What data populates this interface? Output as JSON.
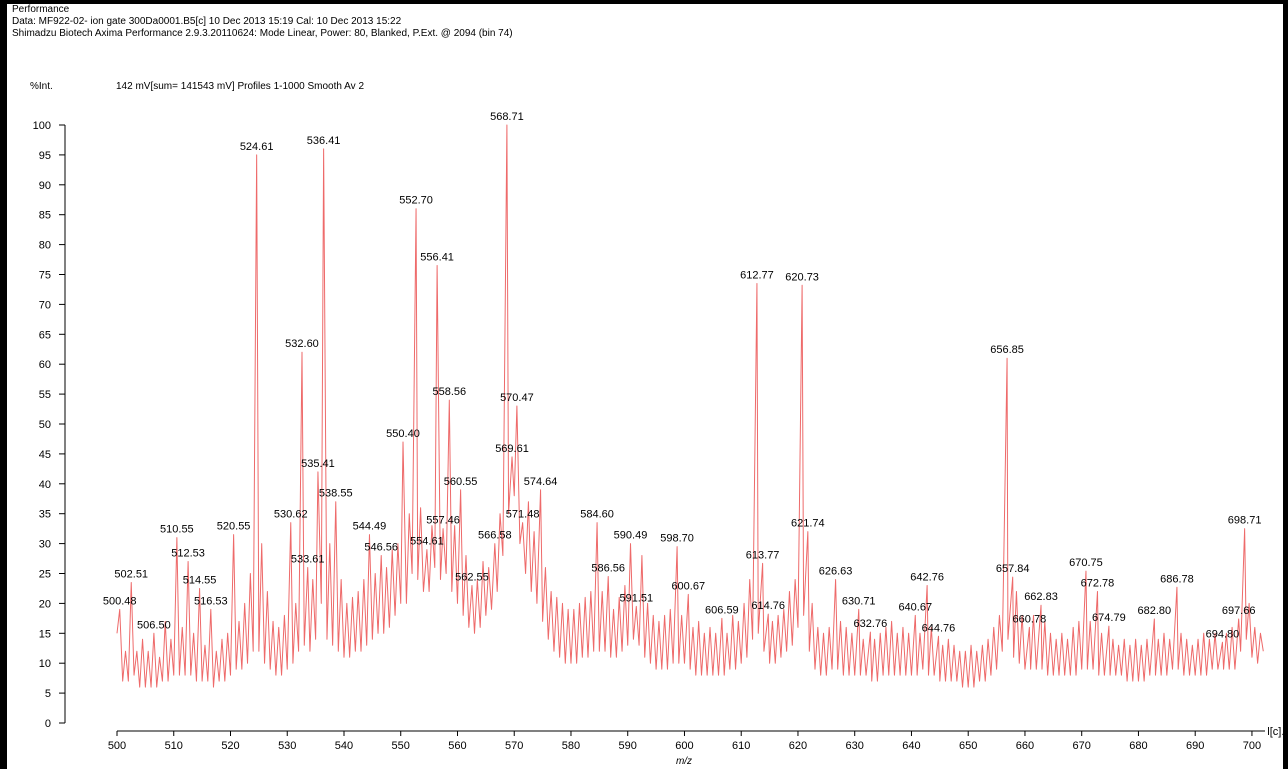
{
  "header": {
    "title": "Performance",
    "data_line": "Data: MF922-02- ion gate 300Da0001.B5[c] 10 Dec 2013 15:19 Cal: 10 Dec 2013 15:22",
    "instrument_line": "Shimadzu Biotech Axima Performance 2.9.3.20110624: Mode Linear, Power: 80, Blanked, P.Ext. @ 2094 (bin 74)"
  },
  "chart_data": {
    "type": "line",
    "ylabel": "%Int.",
    "subtitle": "142 mV[sum= 141543 mV]  Profiles 1-1000 Smooth Av 2",
    "xlabel": "m/z",
    "xlim": [
      500,
      702.3
    ],
    "ylim": [
      0,
      100
    ],
    "xticks": [
      500,
      510,
      520,
      530,
      540,
      550,
      560,
      570,
      580,
      590,
      600,
      610,
      620,
      630,
      640,
      650,
      660,
      670,
      680,
      690,
      700
    ],
    "yticks": [
      0,
      5,
      10,
      15,
      20,
      25,
      30,
      35,
      40,
      45,
      50,
      55,
      60,
      65,
      70,
      75,
      80,
      85,
      90,
      95,
      100
    ],
    "series": [
      {
        "name": "l[c].",
        "color": "#ee6a6a",
        "x": [
          500,
          500.48,
          501,
          501.5,
          502,
          502.51,
          503,
          503.5,
          504,
          504.5,
          505,
          505.5,
          506,
          506.5,
          507,
          507.5,
          508,
          508.5,
          509,
          509.5,
          510,
          510.55,
          511,
          511.5,
          512,
          512.53,
          513,
          513.5,
          514,
          514.55,
          515,
          515.5,
          516,
          516.53,
          517,
          517.5,
          518,
          518.5,
          519,
          519.5,
          520,
          520.55,
          521,
          521.5,
          522,
          522.5,
          523,
          523.5,
          524,
          524.61,
          525,
          525.5,
          526,
          526.5,
          527,
          527.5,
          528,
          528.5,
          529,
          529.5,
          530,
          530.62,
          531,
          531.5,
          532,
          532.6,
          533,
          533.61,
          534,
          534.5,
          535,
          535.41,
          536,
          536.41,
          537,
          537.5,
          538,
          538.55,
          539,
          539.5,
          540,
          540.5,
          541,
          541.5,
          542,
          542.5,
          543,
          543.5,
          544,
          544.49,
          545,
          545.5,
          546,
          546.56,
          547,
          547.5,
          548,
          548.5,
          549,
          549.5,
          550,
          550.4,
          551,
          551.5,
          552,
          552.7,
          553,
          553.5,
          554,
          554.61,
          555,
          555.5,
          556,
          556.41,
          557,
          557.46,
          558,
          558.56,
          559,
          559.5,
          560,
          560.55,
          561,
          561.5,
          562,
          562.55,
          563,
          563.5,
          564,
          564.5,
          565,
          565.5,
          566,
          566.58,
          567,
          567.5,
          568,
          568.71,
          569,
          569.61,
          570,
          570.47,
          571,
          571.48,
          572,
          572.5,
          573,
          573.5,
          574,
          574.64,
          575,
          575.5,
          576,
          576.5,
          577,
          577.5,
          578,
          578.5,
          579,
          579.5,
          580,
          580.5,
          581,
          581.5,
          582,
          582.5,
          583,
          583.5,
          584,
          584.6,
          585,
          585.5,
          586,
          586.56,
          587,
          587.5,
          588,
          588.5,
          589,
          589.5,
          590,
          590.49,
          591,
          591.51,
          592,
          592.5,
          593,
          593.5,
          594,
          594.5,
          595,
          595.5,
          596,
          596.5,
          597,
          597.5,
          598,
          598.7,
          599,
          599.5,
          600,
          600.67,
          601,
          601.5,
          602,
          602.5,
          603,
          603.5,
          604,
          604.5,
          605,
          605.5,
          606,
          606.59,
          607,
          607.5,
          608,
          608.5,
          609,
          609.5,
          610,
          610.5,
          611,
          611.5,
          612,
          612.77,
          613,
          613.77,
          614,
          614.76,
          615,
          615.5,
          616,
          616.5,
          617,
          617.5,
          618,
          618.5,
          619,
          619.5,
          620,
          620.73,
          621,
          621.74,
          622,
          622.5,
          623,
          623.5,
          624,
          624.5,
          625,
          625.5,
          626,
          626.63,
          627,
          627.5,
          628,
          628.5,
          629,
          629.5,
          630,
          630.71,
          631,
          631.5,
          632,
          632.76,
          633,
          633.5,
          634,
          634.5,
          635,
          635.5,
          636,
          636.5,
          637,
          637.5,
          638,
          638.5,
          639,
          639.5,
          640,
          640.67,
          641,
          641.5,
          642,
          642.76,
          643,
          643.5,
          644,
          644.76,
          645,
          645.5,
          646,
          646.5,
          647,
          647.5,
          648,
          648.5,
          649,
          649.5,
          650,
          650.5,
          651,
          651.5,
          652,
          652.5,
          653,
          653.5,
          654,
          654.5,
          655,
          655.5,
          656,
          656.85,
          657,
          657.84,
          658,
          658.5,
          659,
          659.5,
          660,
          660.78,
          661,
          661.5,
          662,
          662.83,
          663,
          663.5,
          664,
          664.5,
          665,
          665.5,
          666,
          666.5,
          667,
          667.5,
          668,
          668.5,
          669,
          669.5,
          670,
          670.75,
          671,
          671.5,
          672,
          672.78,
          673,
          673.5,
          674,
          674.79,
          675,
          675.5,
          676,
          676.5,
          677,
          677.5,
          678,
          678.5,
          679,
          679.5,
          680,
          680.5,
          681,
          681.5,
          682,
          682.8,
          683,
          683.5,
          684,
          684.5,
          685,
          685.5,
          686,
          686.78,
          687,
          687.5,
          688,
          688.5,
          689,
          689.5,
          690,
          690.5,
          691,
          691.5,
          692,
          692.5,
          693,
          693.5,
          694,
          694.8,
          695,
          695.5,
          696,
          696.5,
          697,
          697.66,
          698,
          698.71,
          699,
          699.5,
          700,
          700.5,
          701,
          701.5,
          702
        ],
        "values": [
          15,
          19,
          7,
          12,
          7,
          23.5,
          8,
          12,
          6,
          14,
          6,
          12,
          6,
          15,
          6,
          11,
          7,
          17,
          7,
          14,
          8,
          31,
          8,
          16,
          8,
          27,
          8,
          15,
          7,
          22.5,
          7,
          13,
          7,
          19,
          6,
          12,
          7,
          14,
          7,
          15,
          8,
          31.5,
          9,
          17,
          9,
          20,
          10,
          25,
          12,
          95,
          12,
          30,
          10,
          22,
          9,
          17,
          8,
          16,
          8,
          18,
          9,
          33.5,
          10,
          20,
          12,
          62,
          13,
          26,
          12,
          24,
          14,
          42,
          20,
          96,
          14,
          30,
          13,
          37,
          12,
          24,
          11,
          20,
          11,
          21,
          12,
          22,
          12,
          24,
          13,
          31.5,
          14,
          25,
          15,
          28,
          15,
          26,
          16,
          29,
          18,
          30,
          20,
          47,
          20,
          35,
          25,
          86,
          24,
          36,
          22,
          29,
          22,
          33,
          26,
          76.5,
          24,
          32.5,
          25,
          54,
          22,
          33,
          20,
          39,
          18,
          28,
          16,
          23,
          15,
          24,
          16,
          27,
          18,
          26,
          19,
          30,
          22,
          35,
          28,
          100,
          35,
          44.5,
          38,
          53,
          30,
          33.5,
          25,
          37,
          22,
          32,
          20,
          39,
          17,
          26,
          14,
          22,
          12,
          21,
          11,
          20,
          10,
          19,
          10,
          19,
          10,
          20,
          11,
          21,
          11,
          22,
          12,
          33.5,
          12,
          22,
          12,
          24.5,
          11,
          19,
          11,
          21,
          12,
          23,
          13,
          30,
          14,
          19.5,
          13,
          28,
          11,
          20,
          10,
          18,
          9,
          17,
          9,
          18,
          9,
          19,
          10,
          29.5,
          10,
          18,
          10,
          21.5,
          9,
          16,
          8,
          17,
          8,
          15,
          8,
          16,
          8,
          15,
          8,
          17.5,
          8,
          15,
          9,
          18,
          9,
          17,
          10,
          20,
          11,
          24,
          14,
          73.5,
          15,
          26.7,
          12,
          18.2,
          10,
          17,
          10,
          18,
          11,
          19,
          12,
          22,
          13,
          24,
          16,
          73.2,
          18,
          32,
          12,
          20,
          9,
          16,
          8,
          15,
          8,
          16,
          9,
          24,
          9,
          17,
          8,
          16,
          8,
          15,
          8,
          19,
          8,
          14,
          8,
          15.2,
          7,
          14,
          7,
          15,
          8,
          16,
          8,
          17,
          8,
          15,
          8,
          16,
          8,
          15,
          8,
          18,
          8,
          15,
          9,
          23,
          8,
          16,
          8,
          14.5,
          7,
          13,
          7,
          14,
          7,
          13,
          7,
          12,
          6,
          12,
          6,
          13,
          6,
          12,
          7,
          13,
          7,
          14,
          8,
          16,
          9,
          18,
          12,
          61,
          14,
          24.4,
          11,
          22,
          10,
          18,
          9,
          16,
          9,
          18,
          9,
          19.7,
          9,
          17,
          8,
          15,
          8,
          14,
          8,
          15,
          8,
          14,
          8,
          16,
          8,
          17,
          9,
          25.4,
          9,
          17,
          9,
          22,
          8,
          15,
          8,
          16.2,
          8,
          14,
          8,
          13,
          8,
          14,
          7,
          13,
          7,
          14,
          7,
          13,
          7,
          14,
          8,
          17.4,
          8,
          14,
          8,
          15,
          8,
          14,
          9,
          22.7,
          9,
          15,
          8,
          14,
          8,
          13,
          8,
          14,
          8,
          15,
          8,
          14,
          9,
          15,
          9,
          13.5,
          9,
          15,
          9,
          16,
          9,
          17.4,
          12,
          32.5,
          14,
          20,
          11,
          16,
          10,
          15,
          12
        ]
      }
    ],
    "peaks": {
      "x": [
        500.48,
        502.51,
        506.5,
        510.55,
        512.53,
        514.55,
        516.53,
        520.55,
        524.61,
        530.62,
        532.6,
        533.61,
        535.41,
        536.41,
        538.55,
        544.49,
        546.56,
        550.4,
        552.7,
        554.61,
        556.41,
        557.46,
        558.56,
        560.55,
        562.55,
        566.58,
        568.71,
        569.61,
        570.47,
        571.48,
        574.64,
        584.6,
        586.56,
        590.49,
        591.51,
        598.7,
        600.67,
        606.59,
        612.77,
        613.77,
        614.76,
        620.73,
        621.74,
        626.63,
        630.71,
        632.76,
        640.67,
        642.76,
        644.76,
        656.85,
        657.84,
        660.78,
        662.83,
        670.75,
        672.78,
        674.79,
        682.8,
        686.78,
        694.8,
        697.66,
        698.71
      ],
      "labels": [
        "500.48",
        "502.51",
        "506.50",
        "510.55",
        "512.53",
        "514.55",
        "516.53",
        "520.55",
        "524.61",
        "530.62",
        "532.60",
        "533.61",
        "535.41",
        "536.41",
        "538.55",
        "544.49",
        "546.56",
        "550.40",
        "552.70",
        "554.61",
        "556.41",
        "557.46",
        "558.56",
        "560.55",
        "562.55",
        "566.58",
        "568.71",
        "569.61",
        "570.47",
        "571.48",
        "574.64",
        "584.60",
        "586.56",
        "590.49",
        "591.51",
        "598.70",
        "600.67",
        "606.59",
        "612.77",
        "613.77",
        "614.76",
        "620.73",
        "621.74",
        "626.63",
        "630.71",
        "632.76",
        "640.67",
        "642.76",
        "644.76",
        "656.85",
        "657.84",
        "660.78",
        "662.83",
        "670.75",
        "672.78",
        "674.79",
        "682.80",
        "686.78",
        "694.80",
        "697.66",
        "698.71"
      ],
      "values": [
        19,
        23.5,
        15,
        31,
        27,
        22.5,
        19,
        31.5,
        95,
        33.5,
        62,
        26,
        42,
        96,
        37,
        31.5,
        28,
        47,
        86,
        29,
        76.5,
        32.5,
        54,
        39,
        23,
        30,
        100,
        44.5,
        53,
        33.5,
        39,
        33.5,
        24.5,
        30,
        19.5,
        29.5,
        21.5,
        17.5,
        73.5,
        26.7,
        18.2,
        73.2,
        32,
        24,
        19,
        15.2,
        18,
        23,
        14.5,
        61,
        24.4,
        16,
        19.7,
        25.4,
        22,
        16.2,
        17.4,
        22.7,
        13.5,
        17.4,
        32.5
      ]
    }
  }
}
